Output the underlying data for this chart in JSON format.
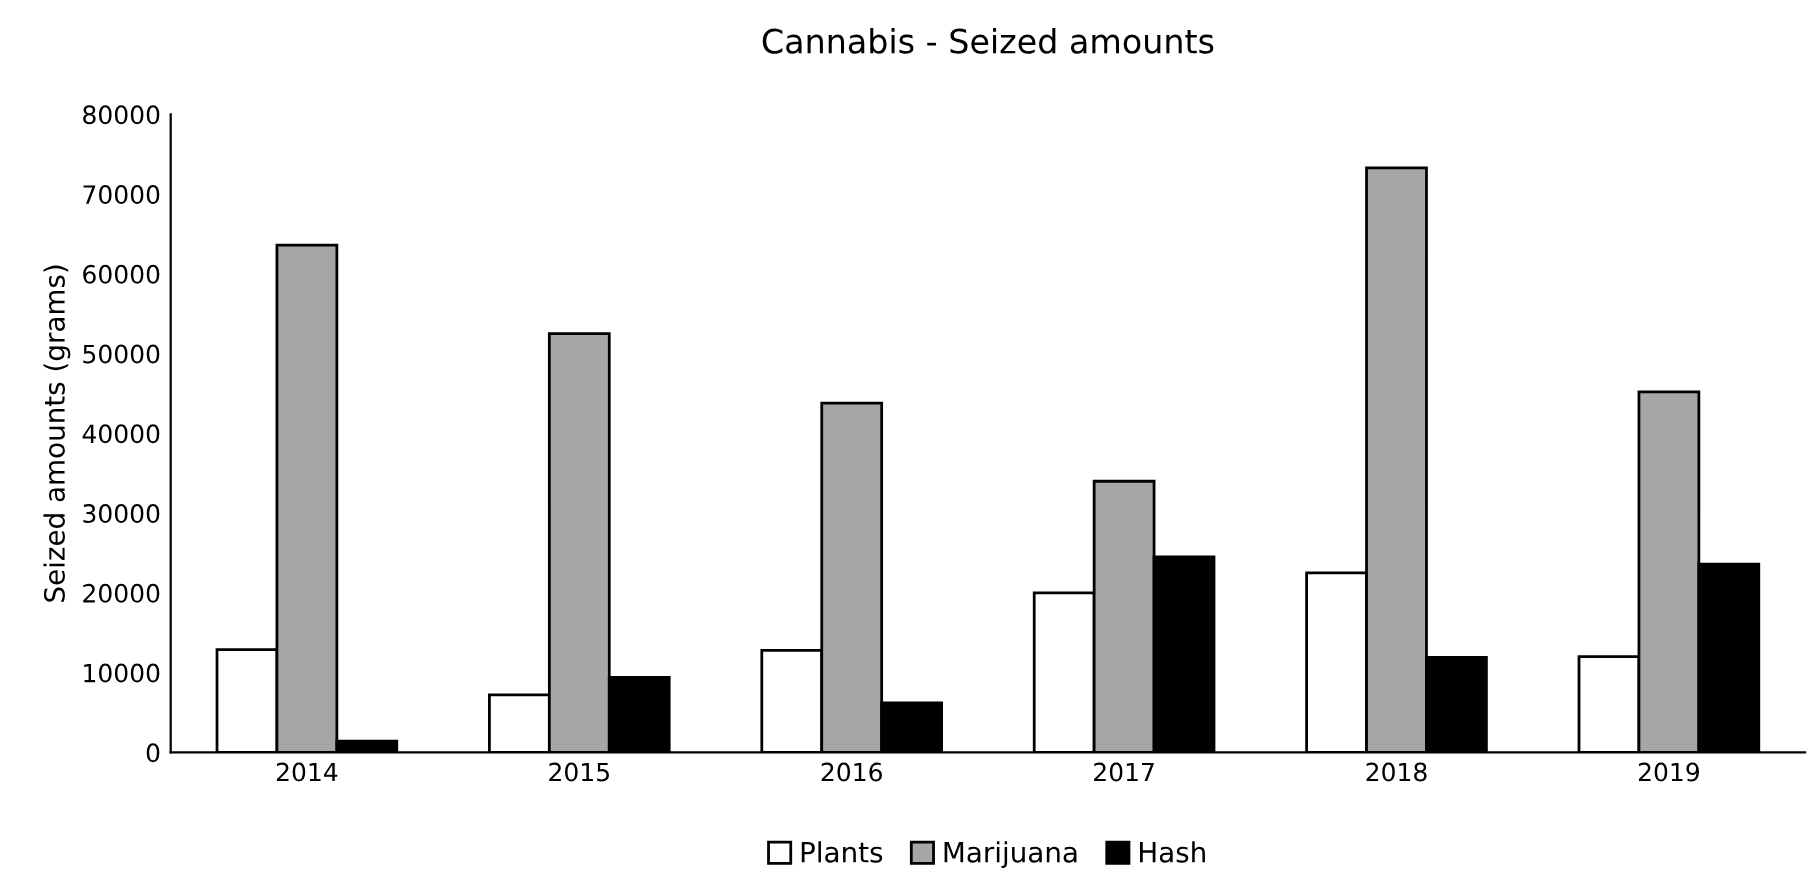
{
  "chart_data": {
    "type": "bar",
    "title": "Cannabis - Seized amounts",
    "ylabel": "Seized amounts (grams)",
    "categories": [
      "2014",
      "2015",
      "2016",
      "2017",
      "2018",
      "2019"
    ],
    "series": [
      {
        "name": "Plants",
        "color": "#ffffff",
        "values": [
          12900,
          7200,
          12800,
          20000,
          22500,
          12000
        ]
      },
      {
        "name": "Marijuana",
        "color": "#a6a6a6",
        "values": [
          63600,
          52500,
          43800,
          34000,
          73300,
          45200
        ]
      },
      {
        "name": "Hash",
        "color": "#000000",
        "values": [
          1400,
          9400,
          6200,
          24500,
          11900,
          23600
        ]
      }
    ],
    "ylim": [
      0,
      80000
    ],
    "yticks": [
      0,
      10000,
      20000,
      30000,
      40000,
      50000,
      60000,
      70000,
      80000
    ],
    "grid": false,
    "legend": "bottom"
  }
}
